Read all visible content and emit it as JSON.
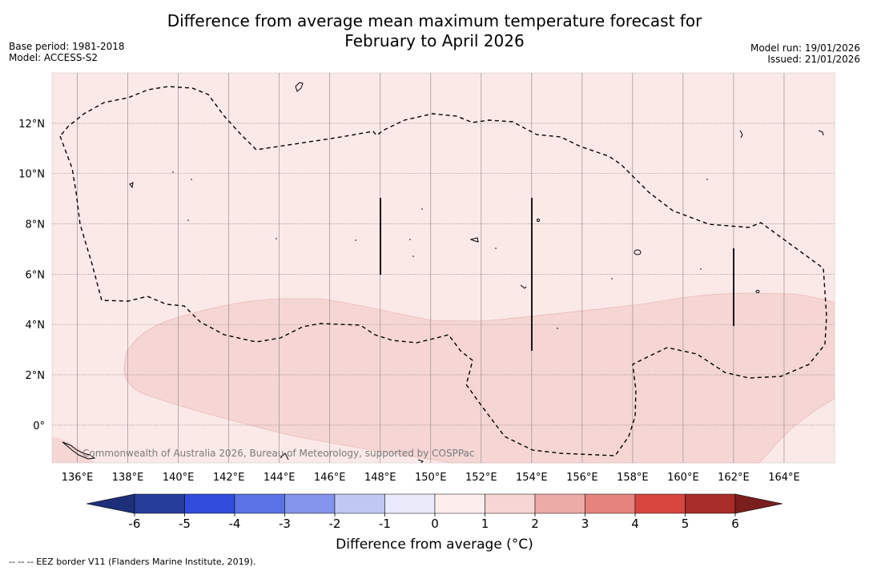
{
  "title": {
    "line1": "Difference from average mean maximum temperature forecast for",
    "line2": "February to April 2026"
  },
  "meta": {
    "base_period": "Base period: 1981-2018",
    "model": "Model: ACCESS-S2",
    "model_run": "Model run: 19/01/2026",
    "issued": "Issued: 21/01/2026"
  },
  "map": {
    "lon_range": [
      135,
      166
    ],
    "lat_range": [
      -1.5,
      14
    ],
    "lon_ticks": [
      {
        "value": 136,
        "label": "136°E"
      },
      {
        "value": 138,
        "label": "138°E"
      },
      {
        "value": 140,
        "label": "140°E"
      },
      {
        "value": 142,
        "label": "142°E"
      },
      {
        "value": 144,
        "label": "144°E"
      },
      {
        "value": 146,
        "label": "146°E"
      },
      {
        "value": 148,
        "label": "148°E"
      },
      {
        "value": 150,
        "label": "150°E"
      },
      {
        "value": 152,
        "label": "152°E"
      },
      {
        "value": 154,
        "label": "154°E"
      },
      {
        "value": 156,
        "label": "156°E"
      },
      {
        "value": 158,
        "label": "158°E"
      },
      {
        "value": 160,
        "label": "160°E"
      },
      {
        "value": 162,
        "label": "162°E"
      },
      {
        "value": 164,
        "label": "164°E"
      }
    ],
    "lat_ticks": [
      {
        "value": 0,
        "label": "0°"
      },
      {
        "value": 2,
        "label": "2°N"
      },
      {
        "value": 4,
        "label": "4°N"
      },
      {
        "value": 6,
        "label": "6°N"
      },
      {
        "value": 8,
        "label": "8°N"
      },
      {
        "value": 10,
        "label": "10°N"
      },
      {
        "value": 12,
        "label": "12°N"
      }
    ],
    "background_band": {
      "range": "0 to 1",
      "color": "#fbe9e8"
    },
    "warm_band": {
      "range": "1 to 2",
      "color": "#f5d6d4"
    },
    "watermark": "Commonwealth of Australia 2026, Bureau of Meteorology, supported by COSPPac"
  },
  "colorbar": {
    "ticks": [
      "-6",
      "-5",
      "-4",
      "-3",
      "-2",
      "-1",
      "0",
      "1",
      "2",
      "3",
      "4",
      "5",
      "6"
    ],
    "colors": [
      "#273d9c",
      "#2f4cdc",
      "#5a72e3",
      "#8494ea",
      "#c0c7f3",
      "#e9ebfb",
      "#fdeeee",
      "#f5d6d4",
      "#ecaba7",
      "#e5837d",
      "#d7463f",
      "#a82d29"
    ],
    "low_extend_color": "#1e2f7a",
    "high_extend_color": "#7a1f1d",
    "label": "Difference from average (°C)"
  },
  "footnote": "--  --  -- EEZ border V11 (Flanders Marine Institute, 2019)."
}
